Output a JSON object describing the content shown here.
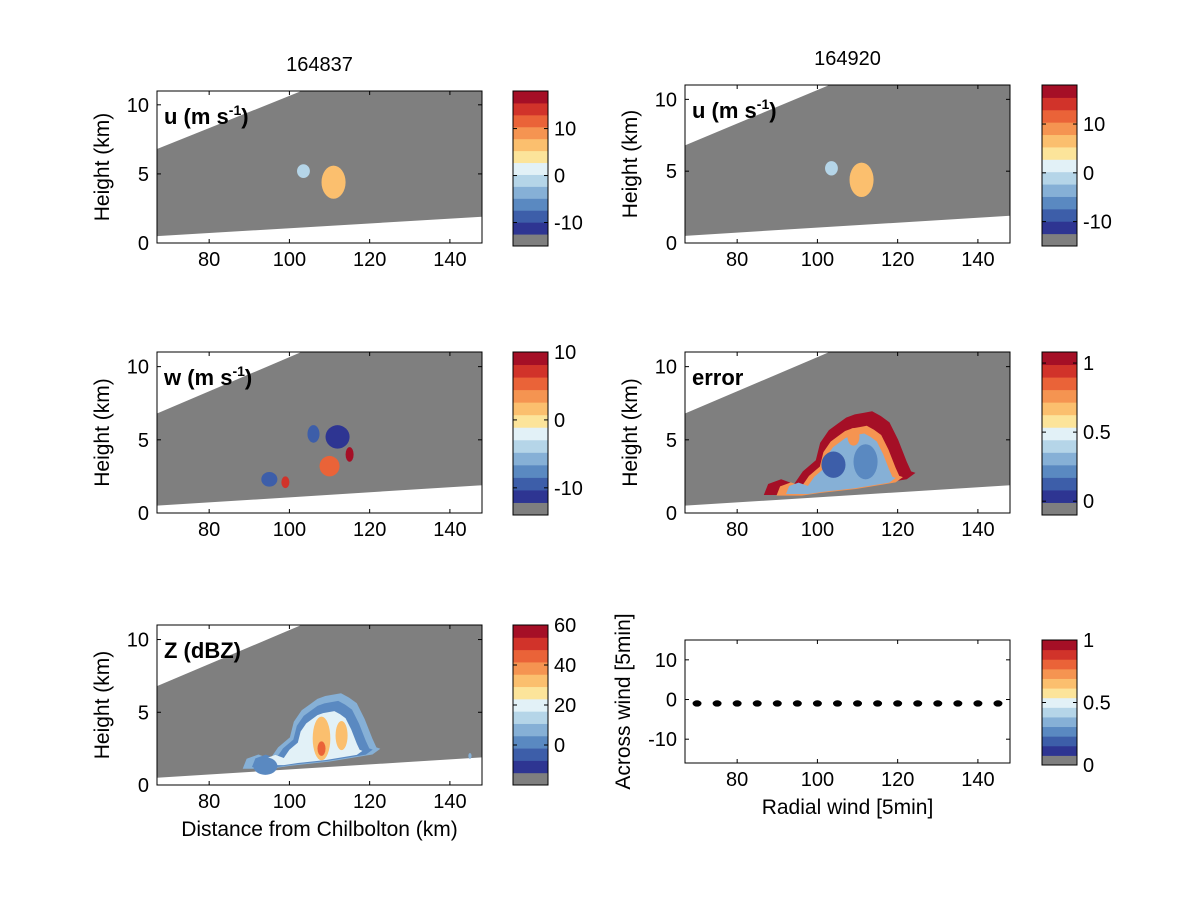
{
  "chart_data": [
    {
      "type": "heatmap",
      "title": "164837",
      "annotation": "u (m s",
      "annotation_sup": "-1",
      "annotation_close": ")",
      "xlabel": "",
      "ylabel": "Height (km)",
      "xlim": [
        67,
        148
      ],
      "ylim": [
        0,
        11
      ],
      "xticks": [
        80,
        100,
        120,
        140
      ],
      "yticks": [
        0,
        5,
        10
      ],
      "grid": false,
      "colorbar": {
        "range": [
          -15,
          18
        ],
        "ticks": [
          -10,
          0,
          10
        ]
      },
      "field": "u"
    },
    {
      "type": "heatmap",
      "title": "164920",
      "annotation": "u (m s",
      "annotation_sup": "-1",
      "annotation_close": ")",
      "xlabel": "",
      "ylabel": "Height (km)",
      "xlim": [
        67,
        148
      ],
      "ylim": [
        0,
        11
      ],
      "xticks": [
        80,
        100,
        120,
        140
      ],
      "yticks": [
        0,
        5,
        10
      ],
      "grid": false,
      "colorbar": {
        "range": [
          -15,
          18
        ],
        "ticks": [
          -10,
          0,
          10
        ]
      },
      "field": "u"
    },
    {
      "type": "heatmap",
      "title": "",
      "annotation": "w (m s",
      "annotation_sup": "-1",
      "annotation_close": ")",
      "xlabel": "",
      "ylabel": "Height (km)",
      "xlim": [
        67,
        148
      ],
      "ylim": [
        0,
        11
      ],
      "xticks": [
        80,
        100,
        120,
        140
      ],
      "yticks": [
        0,
        5,
        10
      ],
      "grid": false,
      "colorbar": {
        "range": [
          -14,
          10
        ],
        "ticks": [
          -10,
          0,
          10
        ]
      },
      "field": "w"
    },
    {
      "type": "heatmap",
      "title": "",
      "annotation": "error",
      "annotation_sup": "",
      "annotation_close": "",
      "xlabel": "",
      "ylabel": "Height (km)",
      "xlim": [
        67,
        148
      ],
      "ylim": [
        0,
        11
      ],
      "xticks": [
        80,
        100,
        120,
        140
      ],
      "yticks": [
        0,
        5,
        10
      ],
      "grid": false,
      "colorbar": {
        "range": [
          -0.1,
          1.08
        ],
        "ticks": [
          0,
          0.5,
          1
        ]
      },
      "field": "error"
    },
    {
      "type": "heatmap",
      "title": "",
      "annotation": "Z (dBZ)",
      "annotation_sup": "",
      "annotation_close": "",
      "xlabel": "Distance from Chilbolton (km)",
      "ylabel": "Height (km)",
      "xlim": [
        67,
        148
      ],
      "ylim": [
        0,
        11
      ],
      "xticks": [
        80,
        100,
        120,
        140
      ],
      "yticks": [
        0,
        5,
        10
      ],
      "grid": false,
      "colorbar": {
        "range": [
          -20,
          60
        ],
        "ticks": [
          0,
          20,
          40,
          60
        ]
      },
      "field": "Z"
    },
    {
      "type": "scatter",
      "title": "",
      "annotation": "",
      "annotation_sup": "",
      "annotation_close": "",
      "xlabel": "Radial wind [5min]",
      "ylabel": "Across wind [5min]",
      "xlim": [
        67,
        148
      ],
      "ylim": [
        -16,
        15
      ],
      "xticks": [
        80,
        100,
        120,
        140
      ],
      "yticks": [
        -10,
        0,
        10
      ],
      "grid": false,
      "colorbar": {
        "range": [
          0,
          1
        ],
        "ticks": [
          0,
          0.5,
          1
        ]
      },
      "x": [
        70,
        75,
        80,
        85,
        90,
        95,
        100,
        105,
        110,
        115,
        120,
        125,
        130,
        135,
        140,
        145
      ],
      "y": [
        -1,
        -1,
        -1,
        -1,
        -1,
        -1,
        -1,
        -1,
        -1,
        -1,
        -1,
        -1,
        -1,
        -1,
        -1,
        -1
      ]
    }
  ],
  "colormap": [
    "#7f7f7f",
    "#2e3592",
    "#3d5ea9",
    "#5a89c1",
    "#86b0d6",
    "#b5d5e8",
    "#e2f1f7",
    "#fce49a",
    "#fbbf6e",
    "#f59451",
    "#ea6338",
    "#d1332a",
    "#a50f26"
  ],
  "background_color": "#7f7f7f"
}
